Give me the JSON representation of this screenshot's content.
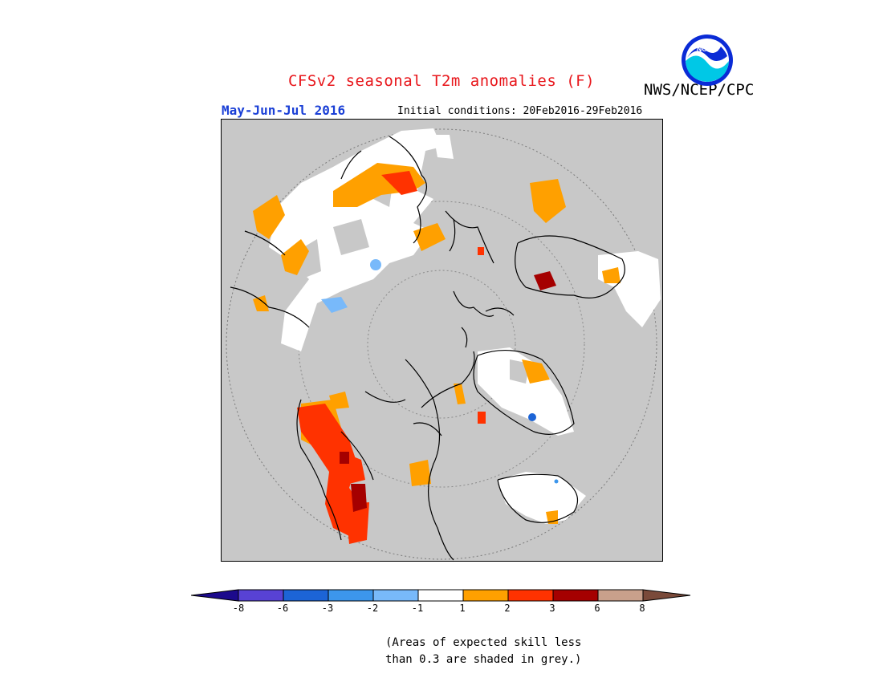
{
  "header": {
    "title": "CFSv2 seasonal T2m anomalies (F)",
    "agency": "NWS/NCEP/CPC",
    "season": "May-Jun-Jul 2016",
    "initial_conditions": "Initial conditions: 20Feb2016-29Feb2016"
  },
  "logo": {
    "text": "NOAA",
    "icon": "noaa-logo"
  },
  "legend": {
    "ticks": [
      "-8",
      "-6",
      "-3",
      "-2",
      "-1",
      "1",
      "2",
      "3",
      "6",
      "8"
    ],
    "colors": [
      "#1c0a8c",
      "#5842d4",
      "#1c64d6",
      "#3c96ec",
      "#78b9fa",
      "#ffffff",
      "#ffa000",
      "#ff3200",
      "#a50000",
      "#c9a08b",
      "#7a4a3a"
    ]
  },
  "note": {
    "line1": "(Areas of expected skill less",
    "line2": "than 0.3 are shaded in grey.)"
  },
  "map": {
    "projection": "north polar stereographic",
    "background": "#c8c8c8"
  }
}
